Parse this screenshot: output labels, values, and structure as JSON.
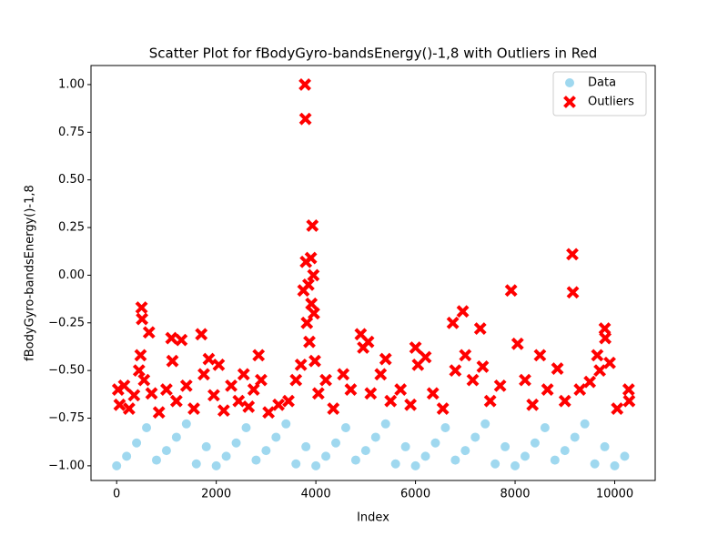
{
  "chart_data": {
    "type": "scatter",
    "title": "Scatter Plot for fBodyGyro-bandsEnergy()-1,8 with Outliers in Red",
    "x_label": "Index",
    "y_label": "fBodyGyro-bandsEnergy()-1,8",
    "xlim": [
      -515,
      10813
    ],
    "ylim": [
      -1.077,
      1.1
    ],
    "xticks": [
      0,
      2000,
      4000,
      6000,
      8000,
      10000
    ],
    "yticks": [
      {
        "value": -1,
        "label": "−1.00"
      },
      {
        "value": -0.75,
        "label": "−0.75"
      },
      {
        "value": -0.5,
        "label": "−0.50"
      },
      {
        "value": -0.25,
        "label": "−0.25"
      },
      {
        "value": 0,
        "label": "0.00"
      },
      {
        "value": 0.25,
        "label": "0.25"
      },
      {
        "value": 0.5,
        "label": "0.50"
      },
      {
        "value": 0.75,
        "label": "0.75"
      },
      {
        "value": 1,
        "label": "1.00"
      }
    ],
    "legend": "upper right",
    "series": [
      {
        "name": "Data",
        "color": "#87ceeb",
        "marker": "circle",
        "x": [
          0,
          200,
          400,
          600,
          800,
          1000,
          1200,
          1400,
          1600,
          1800,
          2000,
          2200,
          2400,
          2600,
          2800,
          3000,
          3200,
          3400,
          3600,
          3800,
          4000,
          4200,
          4400,
          4600,
          4800,
          5000,
          5200,
          5400,
          5600,
          5800,
          6000,
          6200,
          6400,
          6600,
          6800,
          7000,
          7200,
          7400,
          7600,
          7800,
          8000,
          8200,
          8400,
          8600,
          8800,
          9000,
          9200,
          9400,
          9600,
          9800,
          10000,
          10200
        ],
        "values": [
          -1.0,
          -0.95,
          -0.88,
          -0.8,
          -0.97,
          -0.92,
          -0.85,
          -0.78,
          -0.99,
          -0.9,
          -1.0,
          -0.95,
          -0.88,
          -0.8,
          -0.97,
          -0.92,
          -0.85,
          -0.78,
          -0.99,
          -0.9,
          -1.0,
          -0.95,
          -0.88,
          -0.8,
          -0.97,
          -0.92,
          -0.85,
          -0.78,
          -0.99,
          -0.9,
          -1.0,
          -0.95,
          -0.88,
          -0.8,
          -0.97,
          -0.92,
          -0.85,
          -0.78,
          -0.99,
          -0.9,
          -1.0,
          -0.95,
          -0.88,
          -0.8,
          -0.97,
          -0.92,
          -0.85,
          -0.78,
          -0.99,
          -0.9,
          -1.0,
          -0.95
        ]
      },
      {
        "name": "Outliers",
        "color": "#ff0000",
        "marker": "x",
        "x": [
          30,
          60,
          150,
          250,
          350,
          450,
          480,
          500,
          510,
          550,
          650,
          700,
          850,
          1000,
          1100,
          1120,
          1200,
          1300,
          1400,
          1550,
          1700,
          1750,
          1850,
          1950,
          2050,
          2150,
          2300,
          2450,
          2550,
          2650,
          2750,
          2850,
          2900,
          3050,
          3250,
          3450,
          3600,
          3700,
          3750,
          3780,
          3790,
          3800,
          3820,
          3850,
          3870,
          3900,
          3910,
          3930,
          3950,
          3960,
          3980,
          4050,
          4200,
          4350,
          4550,
          4700,
          4900,
          4950,
          5050,
          5100,
          5300,
          5400,
          5500,
          5700,
          5900,
          6000,
          6050,
          6200,
          6350,
          6550,
          6750,
          6800,
          6950,
          7000,
          7150,
          7300,
          7350,
          7500,
          7700,
          7920,
          8050,
          8200,
          8350,
          8500,
          8650,
          8850,
          9000,
          9150,
          9160,
          9300,
          9500,
          9650,
          9700,
          9800,
          9810,
          9900,
          10050,
          10280,
          10290
        ],
        "values": [
          -0.6,
          -0.68,
          -0.58,
          -0.7,
          -0.63,
          -0.5,
          -0.42,
          -0.17,
          -0.23,
          -0.55,
          -0.3,
          -0.62,
          -0.72,
          -0.6,
          -0.33,
          -0.45,
          -0.66,
          -0.34,
          -0.58,
          -0.7,
          -0.31,
          -0.52,
          -0.44,
          -0.63,
          -0.47,
          -0.71,
          -0.58,
          -0.66,
          -0.52,
          -0.69,
          -0.6,
          -0.42,
          -0.55,
          -0.72,
          -0.68,
          -0.66,
          -0.55,
          -0.47,
          -0.08,
          1.0,
          0.82,
          0.07,
          -0.25,
          -0.05,
          -0.35,
          0.09,
          -0.15,
          0.26,
          0.0,
          -0.2,
          -0.45,
          -0.62,
          -0.55,
          -0.7,
          -0.52,
          -0.6,
          -0.31,
          -0.38,
          -0.35,
          -0.62,
          -0.52,
          -0.44,
          -0.66,
          -0.6,
          -0.68,
          -0.38,
          -0.47,
          -0.43,
          -0.62,
          -0.7,
          -0.25,
          -0.5,
          -0.19,
          -0.42,
          -0.55,
          -0.28,
          -0.48,
          -0.66,
          -0.58,
          -0.08,
          -0.36,
          -0.55,
          -0.68,
          -0.42,
          -0.6,
          -0.49,
          -0.66,
          0.11,
          -0.09,
          -0.6,
          -0.56,
          -0.42,
          -0.5,
          -0.28,
          -0.33,
          -0.46,
          -0.7,
          -0.6,
          -0.66
        ]
      }
    ]
  }
}
